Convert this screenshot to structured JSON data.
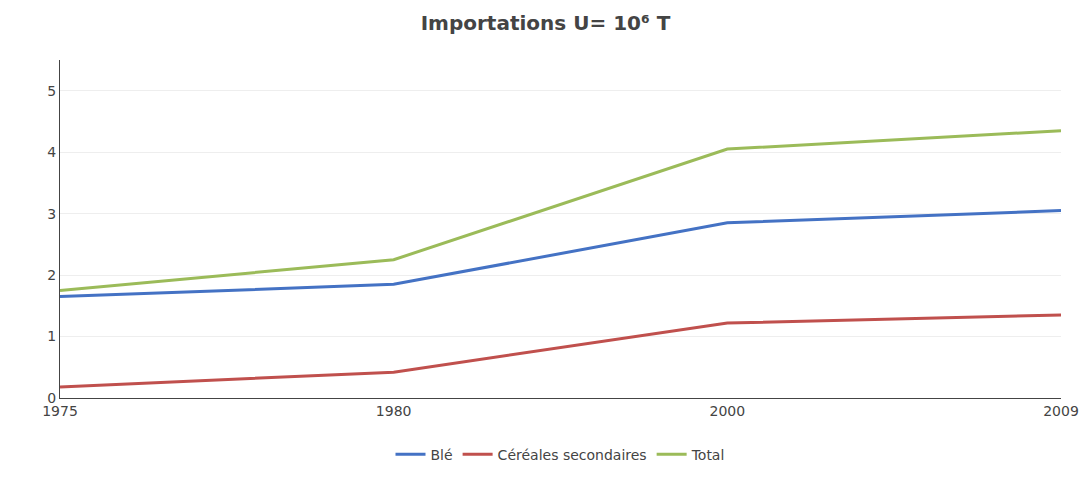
{
  "chart_data": {
    "type": "line",
    "title": "Importations U= 10⁶ T",
    "categories": [
      "1975",
      "1980",
      "2000",
      "2009"
    ],
    "series": [
      {
        "name": "Blé",
        "color": "#4472C4",
        "values": [
          1.65,
          1.85,
          2.85,
          3.05
        ]
      },
      {
        "name": "Céréales secondaires",
        "color": "#C0504D",
        "values": [
          0.18,
          0.42,
          1.22,
          1.35
        ]
      },
      {
        "name": "Total",
        "color": "#9BBB59",
        "values": [
          1.75,
          2.25,
          4.05,
          4.35
        ]
      }
    ],
    "ylim": [
      0,
      5.5
    ],
    "yticks": [
      0,
      1,
      2,
      3,
      4,
      5
    ],
    "grid": true,
    "legend": "lower center"
  }
}
